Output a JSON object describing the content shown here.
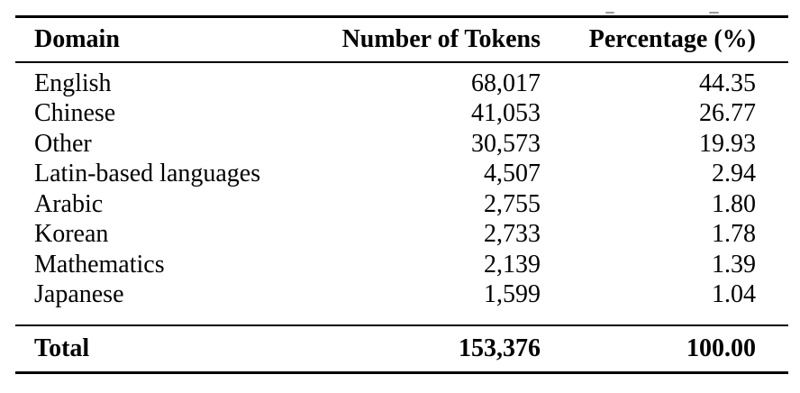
{
  "table": {
    "columns": [
      "Domain",
      "Number of Tokens",
      "Percentage (%)"
    ],
    "rows": [
      {
        "domain": "English",
        "tokens": "68,017",
        "percentage": "44.35"
      },
      {
        "domain": "Chinese",
        "tokens": "41,053",
        "percentage": "26.77"
      },
      {
        "domain": "Other",
        "tokens": "30,573",
        "percentage": "19.93"
      },
      {
        "domain": "Latin-based languages",
        "tokens": "4,507",
        "percentage": "2.94"
      },
      {
        "domain": "Arabic",
        "tokens": "2,755",
        "percentage": "1.80"
      },
      {
        "domain": "Korean",
        "tokens": "2,733",
        "percentage": "1.78"
      },
      {
        "domain": "Mathematics",
        "tokens": "2,139",
        "percentage": "1.39"
      },
      {
        "domain": "Japanese",
        "tokens": "1,599",
        "percentage": "1.04"
      }
    ],
    "total": {
      "domain": "Total",
      "tokens": "153,376",
      "percentage": "100.00"
    }
  },
  "colors": {
    "text": "#000000",
    "background": "#ffffff",
    "rule": "#000000"
  }
}
